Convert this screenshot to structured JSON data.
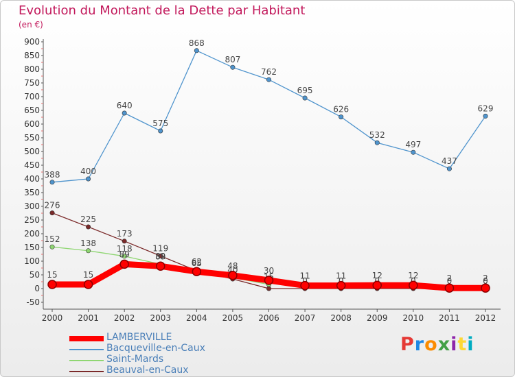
{
  "title": "Evolution du Montant de la Dette par Habitant",
  "unit_label": "(en €)",
  "logo_text": "Proxiti",
  "logo_colors": [
    "#e53935",
    "#1e88e5",
    "#fb8c00",
    "#43a047",
    "#8e24aa",
    "#fdd835",
    "#00acc1"
  ],
  "chart_data": {
    "type": "line",
    "title": "Evolution du Montant de la Dette par Habitant",
    "ylabel": "(en €)",
    "xlabel": "",
    "x": [
      "2000",
      "2001",
      "2002",
      "2003",
      "2004",
      "2005",
      "2006",
      "2007",
      "2008",
      "2009",
      "2010",
      "2011",
      "2012"
    ],
    "ylim": [
      -50,
      900
    ],
    "yticks": [
      -50,
      0,
      50,
      100,
      150,
      200,
      250,
      300,
      350,
      400,
      450,
      500,
      550,
      600,
      650,
      700,
      750,
      800,
      850,
      900
    ],
    "grid": false,
    "legend_position": "bottom-left",
    "series": [
      {
        "name": "LAMBERVILLE",
        "color": "#ff0000",
        "values": [
          15,
          15,
          89,
          82,
          62,
          48,
          30,
          11,
          11,
          12,
          12,
          2,
          2
        ],
        "labels": [
          "15",
          "15",
          "89",
          "82",
          "62",
          "48",
          "30",
          "11",
          "11",
          "12",
          "12",
          "2",
          "2"
        ]
      },
      {
        "name": "Bacqueville-en-Caux",
        "color": "#4f94cd",
        "values": [
          388,
          400,
          640,
          575,
          868,
          807,
          762,
          695,
          626,
          532,
          497,
          437,
          629
        ],
        "labels": [
          "388",
          "400",
          "640",
          "575",
          "868",
          "807",
          "762",
          "695",
          "626",
          "532",
          "497",
          "437",
          "629"
        ]
      },
      {
        "name": "Saint-Mards",
        "color": "#8fd672",
        "values": [
          152,
          138,
          118,
          89,
          65,
          40,
          15,
          null,
          null,
          null,
          null,
          null,
          null
        ],
        "labels": [
          "152",
          "138",
          "118",
          "89",
          "65",
          "40",
          "15",
          "",
          "",
          "",
          "",
          "",
          ""
        ]
      },
      {
        "name": "Beauval-en-Caux",
        "color": "#7b2a2a",
        "values": [
          276,
          225,
          173,
          119,
          65,
          35,
          0,
          0,
          0,
          0,
          0,
          0,
          0
        ],
        "labels": [
          "276",
          "225",
          "173",
          "119",
          "65",
          "",
          "",
          "0",
          "0",
          "0",
          "0",
          "0",
          "0"
        ]
      }
    ]
  }
}
